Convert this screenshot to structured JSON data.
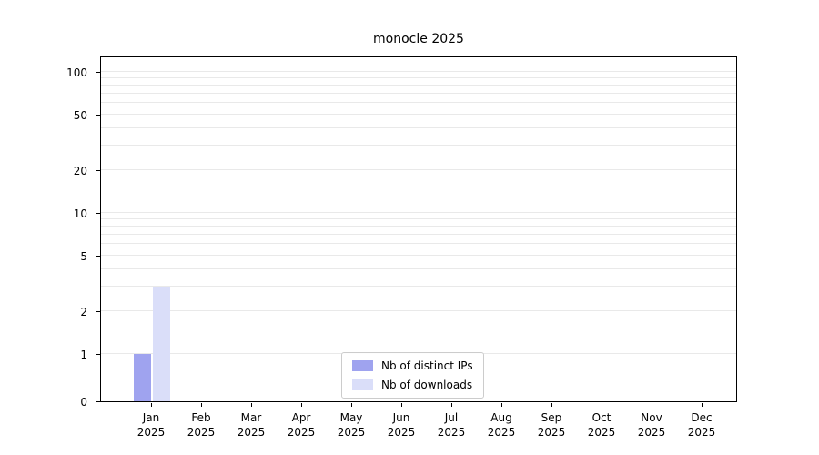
{
  "chart_data": {
    "type": "bar",
    "title": "monocle 2025",
    "xlabel": "",
    "ylabel": "",
    "yscale": "symlog",
    "ylim": [
      0,
      115
    ],
    "grid": "horizontal",
    "legend_position": "lower-center",
    "yticks": [
      0,
      1,
      2,
      5,
      10,
      20,
      50,
      100
    ],
    "gridlines": [
      1,
      2,
      3,
      4,
      5,
      6,
      7,
      8,
      9,
      10,
      20,
      30,
      40,
      50,
      60,
      70,
      80,
      90,
      100
    ],
    "categories": [
      "Jan\n2025",
      "Feb\n2025",
      "Mar\n2025",
      "Apr\n2025",
      "May\n2025",
      "Jun\n2025",
      "Jul\n2025",
      "Aug\n2025",
      "Sep\n2025",
      "Oct\n2025",
      "Nov\n2025",
      "Dec\n2025"
    ],
    "series": [
      {
        "name": "Nb of distinct IPs",
        "color": "#9fa3ef",
        "values": [
          1,
          0,
          0,
          0,
          0,
          0,
          0,
          0,
          0,
          0,
          0,
          0
        ]
      },
      {
        "name": "Nb of downloads",
        "color": "#dadef9",
        "values": [
          3,
          0,
          0,
          0,
          0,
          0,
          0,
          0,
          0,
          0,
          0,
          0
        ]
      }
    ]
  }
}
